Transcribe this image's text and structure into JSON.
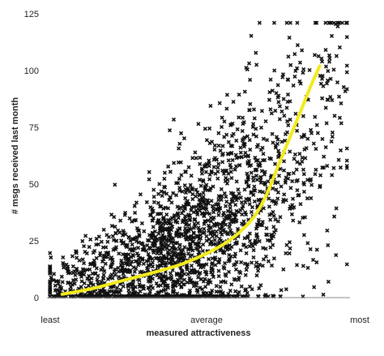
{
  "chart_data": {
    "type": "scatter",
    "title": "",
    "xlabel": "measured attractiveness",
    "ylabel": "# msgs received last month",
    "x_tick_labels": [
      "least",
      "average",
      "most"
    ],
    "y_ticks": [
      0,
      25,
      50,
      75,
      100,
      125
    ],
    "xlim": [
      0,
      1
    ],
    "ylim": [
      0,
      125
    ],
    "grid": false,
    "legend": "none",
    "colors": {
      "points": "#111111",
      "trend": "#f2ea1d",
      "axis": "#888888"
    },
    "scatter_generator": {
      "count": 2200,
      "seed": 12345,
      "note_free": true
    },
    "trend_line": {
      "x": [
        0.05,
        0.15,
        0.25,
        0.35,
        0.45,
        0.55,
        0.62,
        0.68,
        0.72,
        0.76,
        0.8,
        0.84,
        0.87,
        0.9
      ],
      "y": [
        1.5,
        4,
        7.5,
        11,
        15,
        21,
        27,
        35,
        44,
        57,
        70,
        83,
        93,
        102
      ]
    }
  }
}
